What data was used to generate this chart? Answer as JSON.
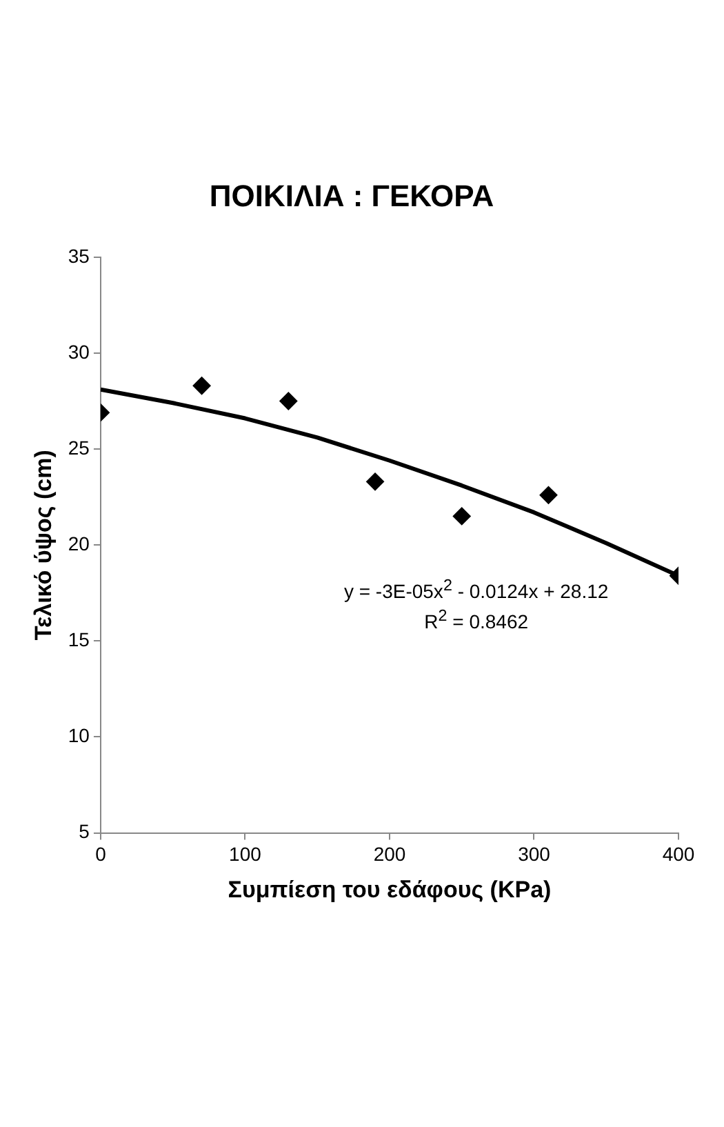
{
  "chart_data": {
    "type": "scatter",
    "title": "ΠΟΙΚΙΛΙΑ : ΓΕΚΟΡΑ",
    "xlabel": "Συμπίεση του εδάφους (KPa)",
    "ylabel": "Τελικό ύψος (cm)",
    "series": [
      {
        "color": "#000000",
        "marker": "diamond",
        "x": [
          0,
          70,
          130,
          190,
          250,
          310,
          400
        ],
        "values": [
          26.9,
          28.3,
          27.5,
          23.3,
          21.5,
          22.6,
          18.4
        ]
      },
      {
        "type": "line",
        "color": "#000000",
        "marker": "none",
        "x": [
          0,
          50,
          100,
          150,
          200,
          250,
          300,
          350,
          400
        ],
        "values": [
          28.1,
          27.4,
          26.6,
          25.6,
          24.4,
          23.1,
          21.7,
          20.1,
          18.4
        ]
      }
    ],
    "annotations": [
      "y = -3E-05x$^{2}$ - 0.0124x + 28.12",
      "R$^{2}$ = 0.8462"
    ],
    "xlim": [
      0,
      400
    ],
    "xticks": [
      0,
      100,
      200,
      300,
      400
    ],
    "ylim": [
      5,
      35
    ],
    "yticks": [
      5,
      10,
      15,
      20,
      25,
      30,
      35
    ],
    "grid": false,
    "legend": false
  }
}
